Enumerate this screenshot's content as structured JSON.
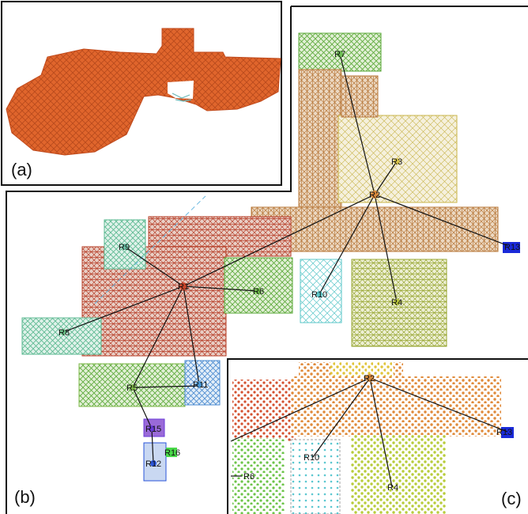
{
  "panels": {
    "a": {
      "letter": "(a)"
    },
    "b": {
      "letter": "(b)"
    },
    "c": {
      "letter": "(c)"
    }
  },
  "regions_b": [
    {
      "id": "R1",
      "label": "R1",
      "color": "#c8452a"
    },
    {
      "id": "R2",
      "label": "R2",
      "color": "#d98a3c"
    },
    {
      "id": "R3",
      "label": "R3",
      "color": "#d9c44a"
    },
    {
      "id": "R4",
      "label": "R4",
      "color": "#b7c43a"
    },
    {
      "id": "R5",
      "label": "R5",
      "color": "#7db848"
    },
    {
      "id": "R6",
      "label": "R6",
      "color": "#6fbf4a"
    },
    {
      "id": "R7",
      "label": "R7",
      "color": "#6dbf54"
    },
    {
      "id": "R8",
      "label": "R8",
      "color": "#6cc48a"
    },
    {
      "id": "R9",
      "label": "R9",
      "color": "#6cc4a8"
    },
    {
      "id": "R10",
      "label": "R10",
      "color": "#5bc7c9"
    },
    {
      "id": "R11",
      "label": "R11",
      "color": "#4a9ad9"
    },
    {
      "id": "R12",
      "label": "R12",
      "color": "#2a55d9"
    },
    {
      "id": "R13",
      "label": "R13",
      "color": "#1a2ad9"
    },
    {
      "id": "R15",
      "label": "R15",
      "color": "#6a3ad9"
    },
    {
      "id": "R16",
      "label": "R16",
      "color": "#4ad94a"
    }
  ],
  "regions_c": [
    {
      "id": "R2",
      "label": "R2"
    },
    {
      "id": "R6",
      "label": "R6"
    },
    {
      "id": "R10",
      "label": "R10"
    },
    {
      "id": "R4",
      "label": "R4"
    },
    {
      "id": "R13",
      "label": "R13"
    }
  ]
}
